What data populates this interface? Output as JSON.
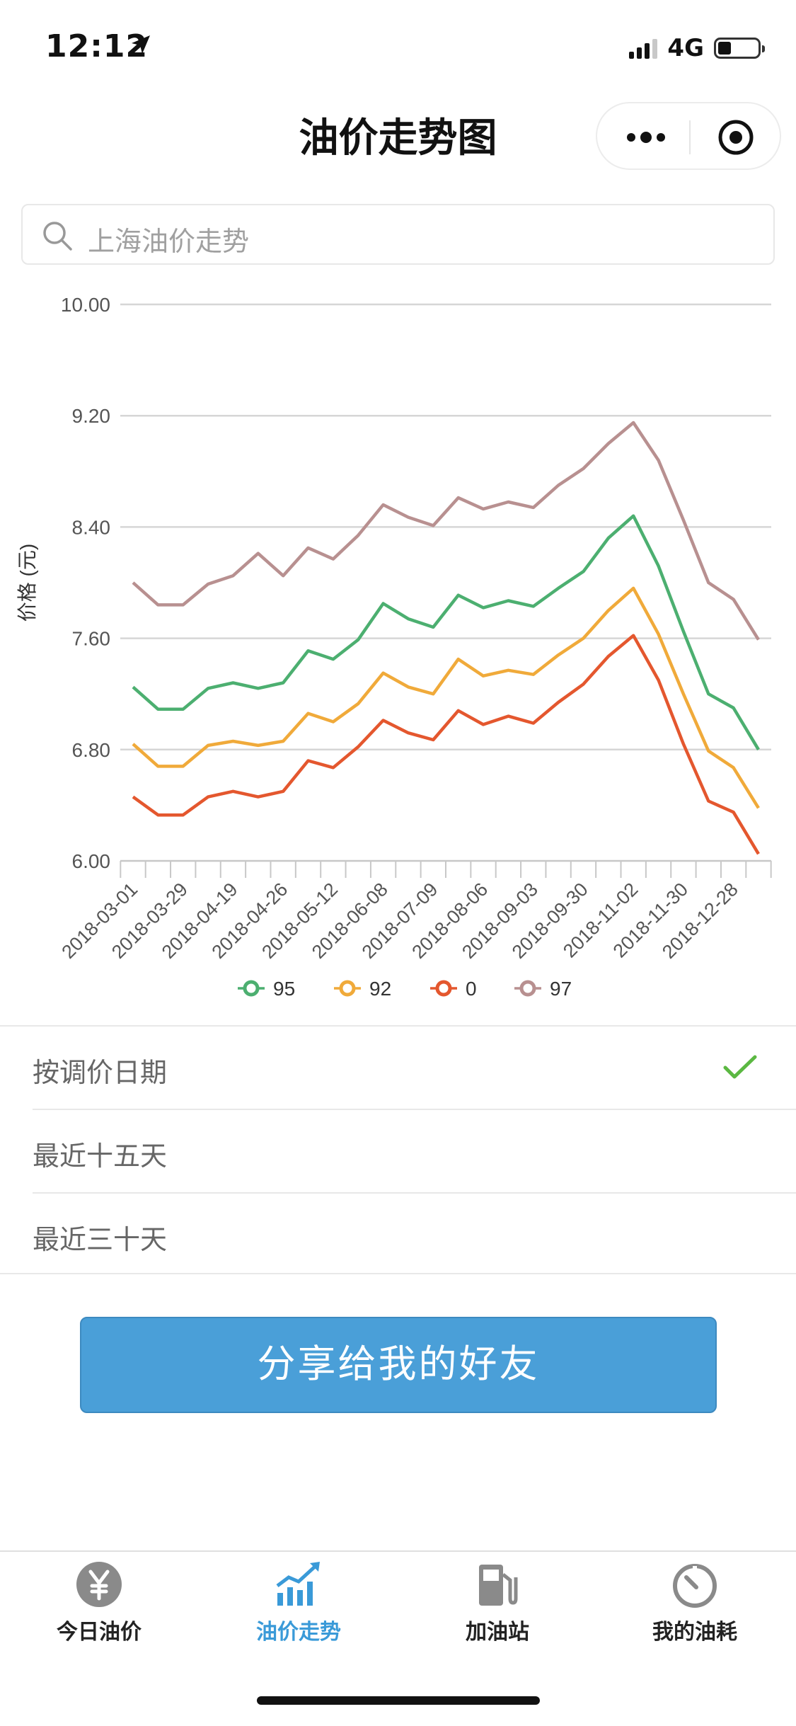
{
  "status_bar": {
    "time": "12:12",
    "network": "4G"
  },
  "nav": {
    "title": "油价走势图"
  },
  "search": {
    "placeholder": "上海油价走势"
  },
  "chart_data": {
    "type": "line",
    "ylabel": "价格 (元)",
    "xlabel": "",
    "ylim": [
      6.0,
      10.0
    ],
    "y_ticks": [
      "10.00",
      "9.20",
      "8.40",
      "7.60",
      "6.80",
      "6.00"
    ],
    "x": [
      "2018-03-01",
      "2018-03-15",
      "2018-03-29",
      "2018-04-12",
      "2018-04-19",
      "2018-04-24",
      "2018-04-26",
      "2018-05-05",
      "2018-05-12",
      "2018-05-19",
      "2018-06-08",
      "2018-06-18",
      "2018-07-09",
      "2018-07-16",
      "2018-08-06",
      "2018-08-13",
      "2018-09-03",
      "2018-09-10",
      "2018-09-30",
      "2018-10-10",
      "2018-11-02",
      "2018-11-16",
      "2018-11-30",
      "2018-12-14",
      "2018-12-28",
      "2019-01-10"
    ],
    "x_tick_labels": [
      "2018-03-01",
      "2018-03-29",
      "2018-04-19",
      "2018-04-26",
      "2018-05-12",
      "2018-06-08",
      "2018-07-09",
      "2018-08-06",
      "2018-09-03",
      "2018-09-30",
      "2018-11-02",
      "2018-11-30",
      "2018-12-28"
    ],
    "grid": true,
    "legend_position": "bottom",
    "series": [
      {
        "name": "95",
        "color": "#4caf70",
        "values": [
          7.25,
          7.09,
          7.09,
          7.24,
          7.28,
          7.24,
          7.28,
          7.51,
          7.45,
          7.59,
          7.85,
          7.74,
          7.68,
          7.91,
          7.82,
          7.87,
          7.83,
          7.96,
          8.08,
          8.32,
          8.48,
          8.12,
          7.65,
          7.2,
          7.1,
          6.8
        ]
      },
      {
        "name": "92",
        "color": "#f0aa3a",
        "values": [
          6.84,
          6.68,
          6.68,
          6.83,
          6.86,
          6.83,
          6.86,
          7.06,
          7.0,
          7.13,
          7.35,
          7.25,
          7.2,
          7.45,
          7.33,
          7.37,
          7.34,
          7.48,
          7.6,
          7.8,
          7.96,
          7.63,
          7.2,
          6.79,
          6.67,
          6.38
        ]
      },
      {
        "name": "0",
        "color": "#e4572e",
        "values": [
          6.46,
          6.33,
          6.33,
          6.46,
          6.5,
          6.46,
          6.5,
          6.72,
          6.67,
          6.82,
          7.01,
          6.92,
          6.87,
          7.08,
          6.98,
          7.04,
          6.99,
          7.14,
          7.27,
          7.47,
          7.62,
          7.3,
          6.84,
          6.43,
          6.35,
          6.05
        ]
      },
      {
        "name": "97",
        "color": "#b89090",
        "values": [
          8.0,
          7.84,
          7.84,
          7.99,
          8.05,
          8.21,
          8.05,
          8.25,
          8.17,
          8.34,
          8.56,
          8.47,
          8.41,
          8.61,
          8.53,
          8.58,
          8.54,
          8.7,
          8.82,
          9.0,
          9.15,
          8.88,
          8.45,
          8.0,
          7.88,
          7.59
        ]
      }
    ]
  },
  "options": [
    {
      "label": "按调价日期",
      "selected": true
    },
    {
      "label": "最近十五天",
      "selected": false
    },
    {
      "label": "最近三十天",
      "selected": false
    }
  ],
  "share_button": {
    "label": "分享给我的好友"
  },
  "tabs": [
    {
      "label": "今日油价",
      "icon": "yuan-coin-icon",
      "active": false
    },
    {
      "label": "油价走势",
      "icon": "trend-chart-icon",
      "active": true
    },
    {
      "label": "加油站",
      "icon": "gas-station-icon",
      "active": false
    },
    {
      "label": "我的油耗",
      "icon": "gauge-icon",
      "active": false
    }
  ],
  "colors": {
    "accent": "#3a9ad8",
    "button": "#4a9fd8",
    "check": "#5bb842"
  }
}
